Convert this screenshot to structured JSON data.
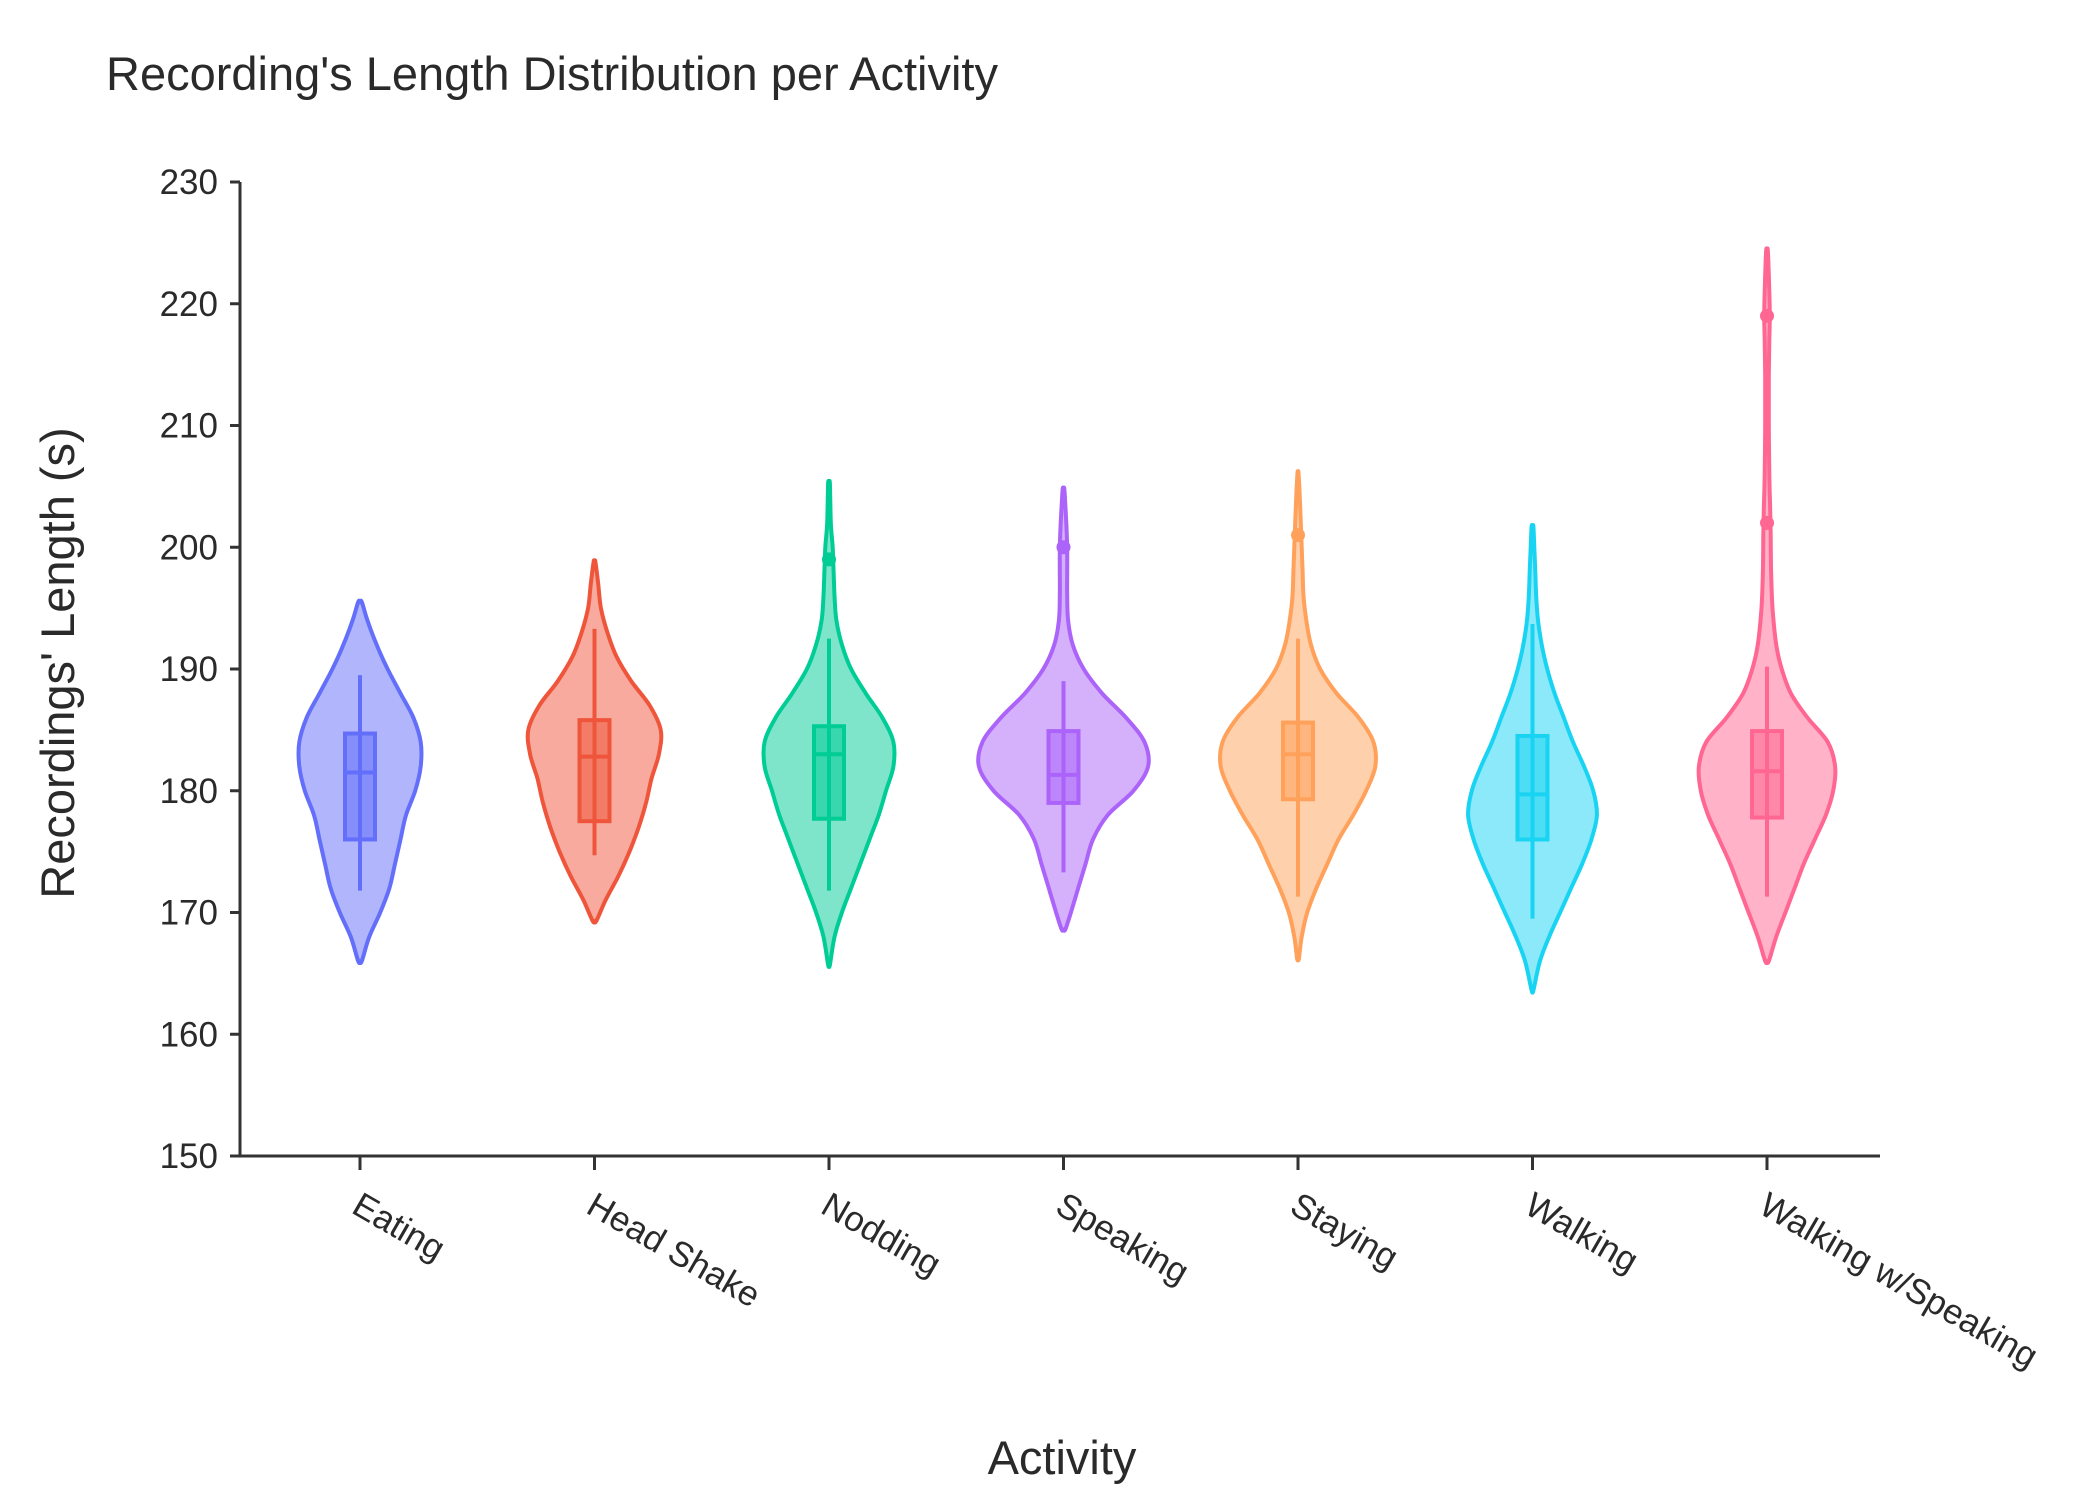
{
  "chart_data": {
    "type": "violin",
    "title": "Recording's Length Distribution per Activity",
    "xlabel": "Activity",
    "ylabel": "Recordings' Length (s)",
    "ylim": [
      150,
      230
    ],
    "yticks": [
      150,
      160,
      170,
      180,
      190,
      200,
      210,
      220,
      230
    ],
    "grid": false,
    "legend": "none",
    "categories": [
      "Eating",
      "Head Shake",
      "Nodding",
      "Speaking",
      "Staying",
      "Walking",
      "Walking w/Speaking"
    ],
    "series": [
      {
        "category": "Eating",
        "color": "#636efa",
        "range": [
          166,
          195.5
        ],
        "q1": 176,
        "median": 181.5,
        "q3": 184.7,
        "whisker_low": 171.8,
        "whisker_high": 189.5,
        "outliers": [],
        "density": [
          [
            166,
            0.02
          ],
          [
            168,
            0.1
          ],
          [
            170,
            0.22
          ],
          [
            172,
            0.32
          ],
          [
            174,
            0.38
          ],
          [
            176,
            0.44
          ],
          [
            178,
            0.5
          ],
          [
            180,
            0.6
          ],
          [
            182,
            0.66
          ],
          [
            184,
            0.66
          ],
          [
            186,
            0.58
          ],
          [
            188,
            0.44
          ],
          [
            190,
            0.3
          ],
          [
            192,
            0.18
          ],
          [
            194,
            0.08
          ],
          [
            195.5,
            0.02
          ]
        ]
      },
      {
        "category": "Head Shake",
        "color": "#ef553b",
        "range": [
          169.3,
          198.8
        ],
        "q1": 177.5,
        "median": 182.8,
        "q3": 185.8,
        "whisker_low": 174.7,
        "whisker_high": 193.3,
        "outliers": [],
        "density": [
          [
            169.3,
            0.02
          ],
          [
            171,
            0.12
          ],
          [
            173,
            0.26
          ],
          [
            175,
            0.38
          ],
          [
            177,
            0.48
          ],
          [
            179,
            0.56
          ],
          [
            181,
            0.62
          ],
          [
            183,
            0.7
          ],
          [
            185,
            0.72
          ],
          [
            187,
            0.6
          ],
          [
            189,
            0.4
          ],
          [
            191,
            0.24
          ],
          [
            193,
            0.14
          ],
          [
            195,
            0.07
          ],
          [
            197,
            0.04
          ],
          [
            198.8,
            0.01
          ]
        ]
      },
      {
        "category": "Nodding",
        "color": "#00cc96",
        "range": [
          165.7,
          205.2
        ],
        "q1": 177.7,
        "median": 183,
        "q3": 185.3,
        "whisker_low": 171.8,
        "whisker_high": 192.5,
        "outliers": [
          199
        ],
        "density": [
          [
            165.7,
            0.01
          ],
          [
            168,
            0.06
          ],
          [
            170,
            0.14
          ],
          [
            172,
            0.24
          ],
          [
            174,
            0.34
          ],
          [
            176,
            0.44
          ],
          [
            178,
            0.54
          ],
          [
            180,
            0.62
          ],
          [
            182,
            0.7
          ],
          [
            184,
            0.7
          ],
          [
            186,
            0.58
          ],
          [
            188,
            0.4
          ],
          [
            190,
            0.24
          ],
          [
            192,
            0.14
          ],
          [
            194,
            0.08
          ],
          [
            196,
            0.06
          ],
          [
            198,
            0.05
          ],
          [
            200,
            0.04
          ],
          [
            202,
            0.02
          ],
          [
            205.2,
            0.01
          ]
        ]
      },
      {
        "category": "Speaking",
        "color": "#ab63fa",
        "range": [
          168.6,
          204.7
        ],
        "q1": 179,
        "median": 181.3,
        "q3": 184.9,
        "whisker_low": 173.3,
        "whisker_high": 189,
        "outliers": [
          200
        ],
        "density": [
          [
            168.6,
            0.02
          ],
          [
            170,
            0.08
          ],
          [
            172,
            0.16
          ],
          [
            174,
            0.24
          ],
          [
            176,
            0.32
          ],
          [
            178,
            0.48
          ],
          [
            180,
            0.76
          ],
          [
            182,
            0.92
          ],
          [
            184,
            0.88
          ],
          [
            186,
            0.68
          ],
          [
            188,
            0.42
          ],
          [
            190,
            0.22
          ],
          [
            192,
            0.1
          ],
          [
            194,
            0.05
          ],
          [
            196,
            0.04
          ],
          [
            198,
            0.04
          ],
          [
            200,
            0.04
          ],
          [
            202,
            0.03
          ],
          [
            204.7,
            0.01
          ]
        ]
      },
      {
        "category": "Staying",
        "color": "#ffa15a",
        "range": [
          166.2,
          206.1
        ],
        "q1": 179.3,
        "median": 183,
        "q3": 185.6,
        "whisker_low": 171.3,
        "whisker_high": 192.5,
        "outliers": [
          201
        ],
        "density": [
          [
            166.2,
            0.01
          ],
          [
            168,
            0.04
          ],
          [
            170,
            0.1
          ],
          [
            172,
            0.2
          ],
          [
            174,
            0.32
          ],
          [
            176,
            0.44
          ],
          [
            178,
            0.6
          ],
          [
            180,
            0.74
          ],
          [
            182,
            0.84
          ],
          [
            184,
            0.82
          ],
          [
            186,
            0.66
          ],
          [
            188,
            0.42
          ],
          [
            190,
            0.24
          ],
          [
            192,
            0.14
          ],
          [
            194,
            0.09
          ],
          [
            196,
            0.06
          ],
          [
            198,
            0.05
          ],
          [
            200,
            0.04
          ],
          [
            202,
            0.03
          ],
          [
            204,
            0.02
          ],
          [
            206.1,
            0.005
          ]
        ]
      },
      {
        "category": "Walking",
        "color": "#19d3f3",
        "range": [
          163.6,
          201.7
        ],
        "q1": 176,
        "median": 179.7,
        "q3": 184.5,
        "whisker_low": 169.5,
        "whisker_high": 193.7,
        "outliers": [],
        "density": [
          [
            163.6,
            0.01
          ],
          [
            166,
            0.08
          ],
          [
            168,
            0.18
          ],
          [
            170,
            0.3
          ],
          [
            172,
            0.42
          ],
          [
            174,
            0.54
          ],
          [
            176,
            0.64
          ],
          [
            178,
            0.7
          ],
          [
            180,
            0.66
          ],
          [
            182,
            0.56
          ],
          [
            184,
            0.44
          ],
          [
            186,
            0.34
          ],
          [
            188,
            0.24
          ],
          [
            190,
            0.16
          ],
          [
            192,
            0.1
          ],
          [
            194,
            0.06
          ],
          [
            196,
            0.04
          ],
          [
            198,
            0.03
          ],
          [
            200,
            0.02
          ],
          [
            201.7,
            0.01
          ]
        ]
      },
      {
        "category": "Walking w/Speaking",
        "color": "#ff6692",
        "range": [
          166,
          224.3
        ],
        "q1": 177.8,
        "median": 181.6,
        "q3": 184.9,
        "whisker_low": 171.3,
        "whisker_high": 190.2,
        "outliers": [
          202,
          219
        ],
        "density": [
          [
            166,
            0.02
          ],
          [
            168,
            0.1
          ],
          [
            170,
            0.2
          ],
          [
            172,
            0.3
          ],
          [
            174,
            0.4
          ],
          [
            176,
            0.52
          ],
          [
            178,
            0.64
          ],
          [
            180,
            0.72
          ],
          [
            182,
            0.74
          ],
          [
            184,
            0.66
          ],
          [
            186,
            0.44
          ],
          [
            188,
            0.26
          ],
          [
            190,
            0.16
          ],
          [
            192,
            0.1
          ],
          [
            195,
            0.06
          ],
          [
            198,
            0.045
          ],
          [
            201,
            0.04
          ],
          [
            203,
            0.035
          ],
          [
            206,
            0.025
          ],
          [
            210,
            0.02
          ],
          [
            214,
            0.02
          ],
          [
            217,
            0.025
          ],
          [
            219,
            0.03
          ],
          [
            221,
            0.025
          ],
          [
            224.3,
            0.01
          ]
        ]
      }
    ]
  }
}
